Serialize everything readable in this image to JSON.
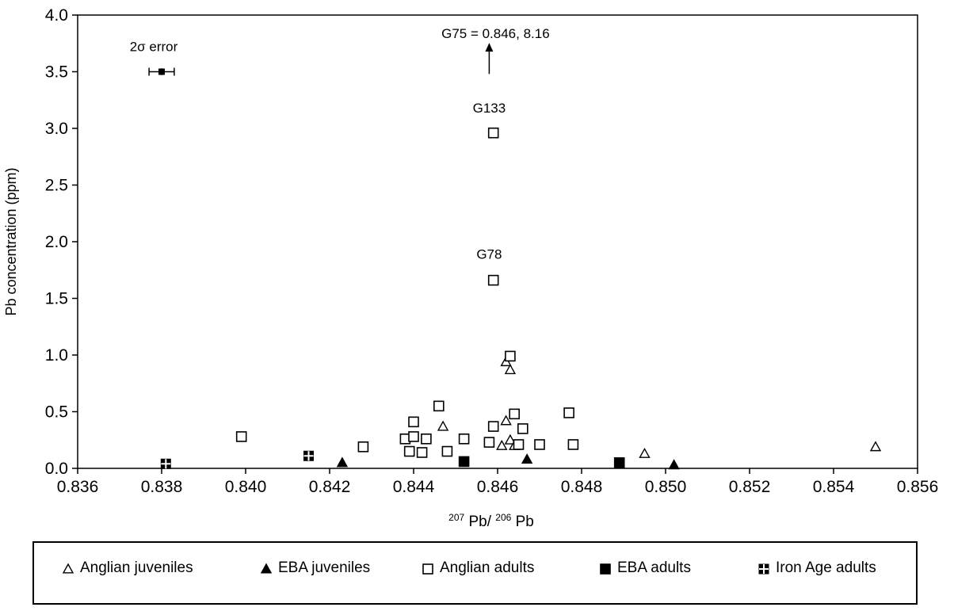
{
  "chart_data": {
    "type": "scatter",
    "xlabel_sup1": "207",
    "xlabel_mid": "Pb/",
    "xlabel_sup2": "206",
    "xlabel_end": "Pb",
    "ylabel": "Pb concentration (ppm)",
    "xlim": [
      0.836,
      0.856
    ],
    "ylim": [
      0.0,
      4.0
    ],
    "x_ticks": [
      "0.836",
      "0.838",
      "0.840",
      "0.842",
      "0.844",
      "0.846",
      "0.848",
      "0.850",
      "0.852",
      "0.854",
      "0.856"
    ],
    "y_ticks": [
      "0.0",
      "0.5",
      "1.0",
      "1.5",
      "2.0",
      "2.5",
      "3.0",
      "3.5",
      "4.0"
    ],
    "grid": false,
    "legend_position": "bottom",
    "series": [
      {
        "name": "Anglian juveniles",
        "marker": "triangle-open",
        "points": [
          [
            0.8447,
            0.37
          ],
          [
            0.8462,
            0.42
          ],
          [
            0.8461,
            0.2
          ],
          [
            0.8463,
            0.25
          ],
          [
            0.8464,
            0.2
          ],
          [
            0.8462,
            0.94
          ],
          [
            0.8463,
            0.87
          ],
          [
            0.8495,
            0.13
          ],
          [
            0.855,
            0.19
          ]
        ]
      },
      {
        "name": "EBA juveniles",
        "marker": "triangle-filled",
        "points": [
          [
            0.8423,
            0.05
          ],
          [
            0.8467,
            0.08
          ],
          [
            0.8502,
            0.03
          ]
        ]
      },
      {
        "name": "Anglian adults",
        "marker": "square-open",
        "points": [
          [
            0.8399,
            0.28
          ],
          [
            0.8428,
            0.19
          ],
          [
            0.8438,
            0.26
          ],
          [
            0.8439,
            0.15
          ],
          [
            0.844,
            0.41
          ],
          [
            0.844,
            0.28
          ],
          [
            0.8442,
            0.14
          ],
          [
            0.8443,
            0.26
          ],
          [
            0.8446,
            0.55
          ],
          [
            0.8448,
            0.15
          ],
          [
            0.8452,
            0.26
          ],
          [
            0.8458,
            0.23
          ],
          [
            0.8459,
            0.37
          ],
          [
            0.8464,
            0.48
          ],
          [
            0.8465,
            0.21
          ],
          [
            0.8466,
            0.35
          ],
          [
            0.847,
            0.21
          ],
          [
            0.8477,
            0.49
          ],
          [
            0.8478,
            0.21
          ],
          [
            0.8463,
            0.99
          ],
          [
            0.8459,
            1.66
          ],
          [
            0.8459,
            2.96
          ]
        ]
      },
      {
        "name": "EBA adults",
        "marker": "square-filled",
        "points": [
          [
            0.8452,
            0.06
          ],
          [
            0.8489,
            0.05
          ]
        ]
      },
      {
        "name": "Iron Age adults",
        "marker": "square-cross",
        "points": [
          [
            0.8381,
            0.04
          ],
          [
            0.8415,
            0.11
          ]
        ]
      }
    ],
    "annotations": {
      "error_label": "2σ error",
      "error_bar": {
        "x": 0.838,
        "y": 3.5,
        "x_err": 0.0003,
        "y_err": 0.03
      },
      "outlier_label": "G75 = 0.846, 8.16",
      "outlier_arrow": {
        "x": 0.8458,
        "y_from": 3.48,
        "y_to": 3.74
      },
      "point_labels": [
        {
          "text": "G133",
          "x": 0.8458,
          "y": 3.14
        },
        {
          "text": "G78",
          "x": 0.8458,
          "y": 1.85
        }
      ]
    }
  },
  "legend": {
    "items": [
      {
        "label": "Anglian juveniles",
        "marker": "triangle-open"
      },
      {
        "label": "EBA juveniles",
        "marker": "triangle-filled"
      },
      {
        "label": "Anglian adults",
        "marker": "square-open"
      },
      {
        "label": "EBA adults",
        "marker": "square-filled"
      },
      {
        "label": "Iron Age adults",
        "marker": "square-cross"
      }
    ]
  }
}
